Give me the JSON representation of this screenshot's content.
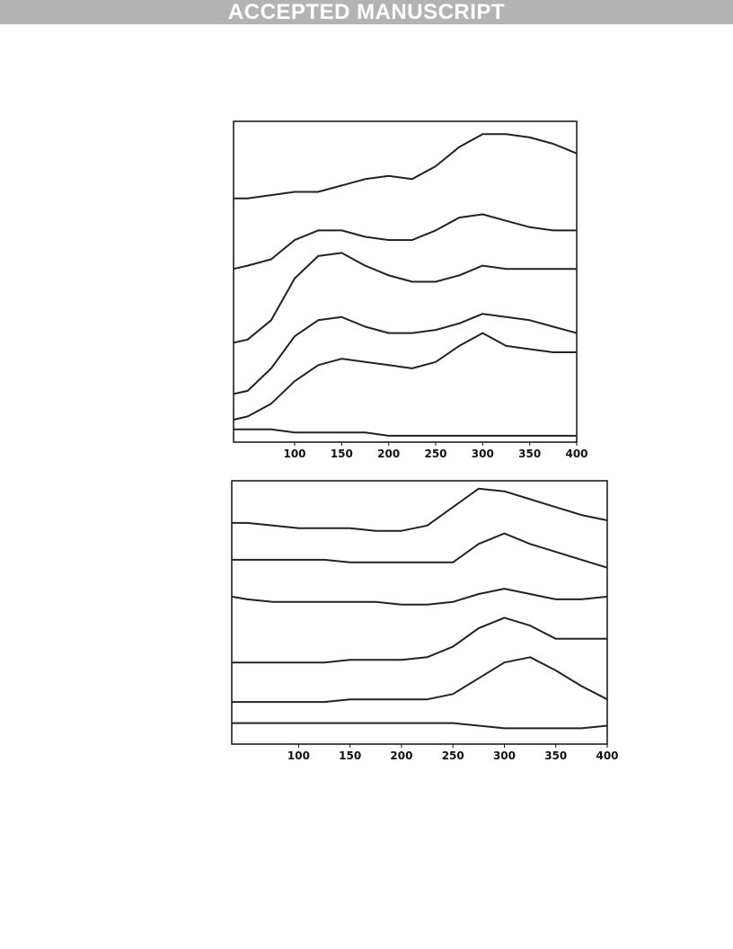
{
  "header": {
    "banner": "ACCEPTED MANUSCRIPT"
  },
  "chart_data": [
    {
      "type": "line",
      "x": [
        35,
        50,
        75,
        100,
        125,
        150,
        175,
        200,
        225,
        250,
        275,
        300,
        325,
        350,
        375,
        400
      ],
      "xlim": [
        35,
        400
      ],
      "xticks": [
        100,
        150,
        200,
        250,
        300,
        350,
        400
      ],
      "ylim": [
        0,
        100
      ],
      "series": [
        {
          "color": "#222222",
          "values": [
            76,
            76,
            77,
            78,
            78,
            80,
            82,
            83,
            82,
            86,
            92,
            96,
            96,
            95,
            93,
            90
          ]
        },
        {
          "color": "#222222",
          "values": [
            54,
            55,
            57,
            63,
            66,
            66,
            64,
            63,
            63,
            66,
            70,
            71,
            69,
            67,
            66,
            66
          ]
        },
        {
          "color": "#222222",
          "values": [
            31,
            32,
            38,
            51,
            58,
            59,
            55,
            52,
            50,
            50,
            52,
            55,
            54,
            54,
            54,
            54
          ]
        },
        {
          "color": "#222222",
          "values": [
            15,
            16,
            23,
            33,
            38,
            39,
            36,
            34,
            34,
            35,
            37,
            40,
            39,
            38,
            36,
            34
          ]
        },
        {
          "color": "#222222",
          "values": [
            7,
            8,
            12,
            19,
            24,
            26,
            25,
            24,
            23,
            25,
            30,
            34,
            30,
            29,
            28,
            28
          ]
        },
        {
          "color": "#222222",
          "values": [
            4,
            4,
            4,
            3,
            3,
            3,
            3,
            2,
            2,
            2,
            2,
            2,
            2,
            2,
            2,
            2
          ]
        }
      ]
    },
    {
      "type": "line",
      "x": [
        35,
        50,
        75,
        100,
        125,
        150,
        175,
        200,
        225,
        250,
        275,
        300,
        325,
        350,
        375,
        400
      ],
      "xlim": [
        35,
        400
      ],
      "xticks": [
        100,
        150,
        200,
        250,
        300,
        350,
        400
      ],
      "ylim": [
        0,
        100
      ],
      "series": [
        {
          "color": "#222222",
          "values": [
            84,
            84,
            83,
            82,
            82,
            82,
            81,
            81,
            83,
            90,
            97,
            96,
            93,
            90,
            87,
            85
          ]
        },
        {
          "color": "#222222",
          "values": [
            70,
            70,
            70,
            70,
            70,
            69,
            69,
            69,
            69,
            69,
            76,
            80,
            76,
            73,
            70,
            67
          ]
        },
        {
          "color": "#222222",
          "values": [
            56,
            55,
            54,
            54,
            54,
            54,
            54,
            53,
            53,
            54,
            57,
            59,
            57,
            55,
            55,
            56
          ]
        },
        {
          "color": "#222222",
          "values": [
            31,
            31,
            31,
            31,
            31,
            32,
            32,
            32,
            33,
            37,
            44,
            48,
            45,
            40,
            40,
            40
          ]
        },
        {
          "color": "#222222",
          "values": [
            16,
            16,
            16,
            16,
            16,
            17,
            17,
            17,
            17,
            19,
            25,
            31,
            33,
            28,
            22,
            17
          ]
        },
        {
          "color": "#222222",
          "values": [
            8,
            8,
            8,
            8,
            8,
            8,
            8,
            8,
            8,
            8,
            7,
            6,
            6,
            6,
            6,
            7
          ]
        }
      ]
    }
  ]
}
